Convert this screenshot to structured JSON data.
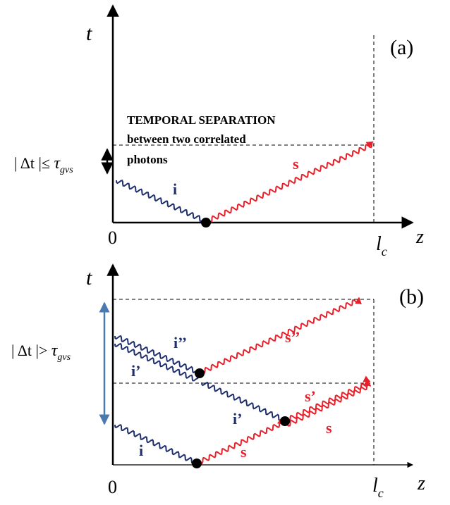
{
  "colors": {
    "axis": "#000000",
    "idler": "#1f2f6e",
    "signal": "#e8202a",
    "bracket_b": "#4a7ab0",
    "dashed": "#000000"
  },
  "panel_a": {
    "label": "(a)",
    "t_label": "t",
    "z_label": "z",
    "origin_label": "0",
    "lc_main": "l",
    "lc_sub": "c",
    "title_line1": "TEMPORAL SEPARATION",
    "title_line2": "between two correlated",
    "title_line3": "photons",
    "cond_prefix": "| Δt |≤ ",
    "cond_tau": "τ",
    "cond_sub": "gvs",
    "idler_label": "i",
    "signal_label": "s"
  },
  "panel_b": {
    "label": "(b)",
    "t_label": "t",
    "z_label": "z",
    "origin_label": "0",
    "lc_main": "l",
    "lc_sub": "c",
    "cond_prefix": "| Δt |> ",
    "cond_tau": "τ",
    "cond_sub": "gvs",
    "idler_labels": [
      "i",
      "i’",
      "i’’",
      "i’"
    ],
    "signal_labels": [
      "s",
      "s",
      "s’",
      "s’’"
    ]
  }
}
